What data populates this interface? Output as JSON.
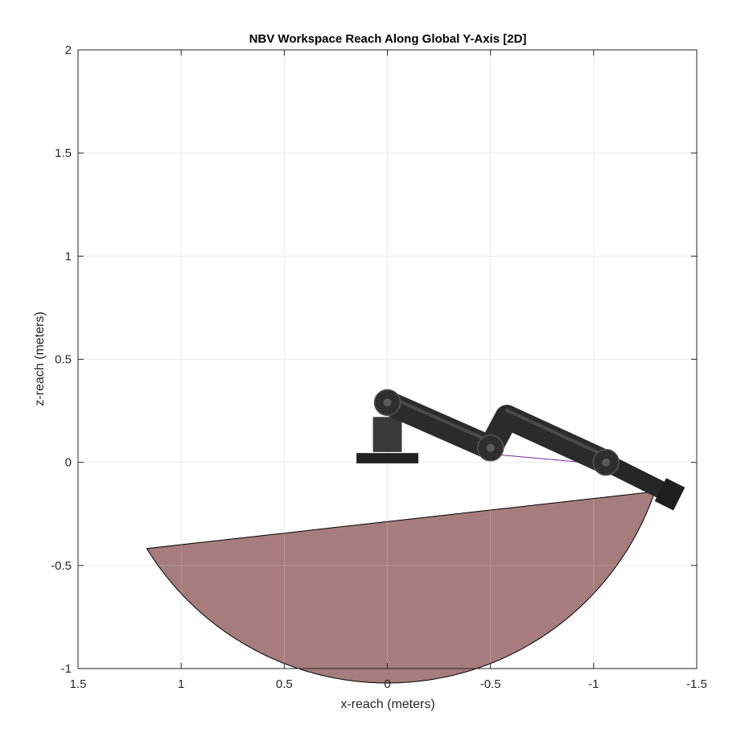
{
  "chart_data": {
    "type": "area",
    "title": "NBV Workspace Reach Along Global Y-Axis [2D]",
    "xlabel": "x-reach (meters)",
    "ylabel": "z-reach (meters)",
    "xlim": [
      1.5,
      -1.5
    ],
    "ylim": [
      -1,
      2
    ],
    "x_reversed": true,
    "grid": true,
    "x_ticks": [
      1.5,
      1,
      0.5,
      0,
      -0.5,
      -1,
      -1.5
    ],
    "x_tick_labels": [
      "1.5",
      "1",
      "0.5",
      "0",
      "-0.5",
      "-1",
      "-1.5"
    ],
    "y_ticks": [
      2,
      1.5,
      1,
      0.5,
      0,
      -0.5,
      -1
    ],
    "y_tick_labels": [
      "2",
      "1.5",
      "1",
      "0.5",
      "0",
      "-0.5",
      "-1"
    ],
    "colors": {
      "region_fill": "#a67c7c",
      "region_edge": "#000000",
      "robot": "#2b2b2b",
      "grid": "#e6e6e6",
      "axis": "#262626"
    },
    "workspace_region": {
      "center": [
        0,
        0.3
      ],
      "radius": 1.37,
      "arc_start": [
        1.17,
        -0.42
      ],
      "arc_end": [
        -1.35,
        -0.16
      ],
      "chord_passes_through": [
        0,
        -0.29
      ]
    },
    "robot_arm": {
      "base_plate": {
        "x_from": 0.15,
        "x_to": -0.15,
        "z_from": -0.005,
        "z_to": 0.045
      },
      "base_column": {
        "x_from": 0.07,
        "x_to": -0.07,
        "z_from": 0.05,
        "z_to": 0.22
      },
      "joints": [
        [
          0,
          0.29
        ],
        [
          -0.5,
          0.07
        ],
        [
          -1.06,
          0.0
        ]
      ],
      "links": [
        {
          "from": [
            0,
            0.29
          ],
          "to": [
            -0.5,
            0.07
          ]
        },
        {
          "from": [
            -0.58,
            0.22
          ],
          "to": [
            -1.06,
            0.0
          ]
        }
      ],
      "elbow_connector": {
        "from": [
          -0.5,
          0.07
        ],
        "to": [
          -0.58,
          0.22
        ]
      },
      "end_effector": {
        "from": [
          -1.06,
          0.0
        ],
        "to": [
          -1.38,
          -0.16
        ]
      },
      "reference_line": {
        "from": [
          -0.5,
          0.04
        ],
        "to": [
          -1.06,
          -0.01
        ]
      }
    }
  }
}
